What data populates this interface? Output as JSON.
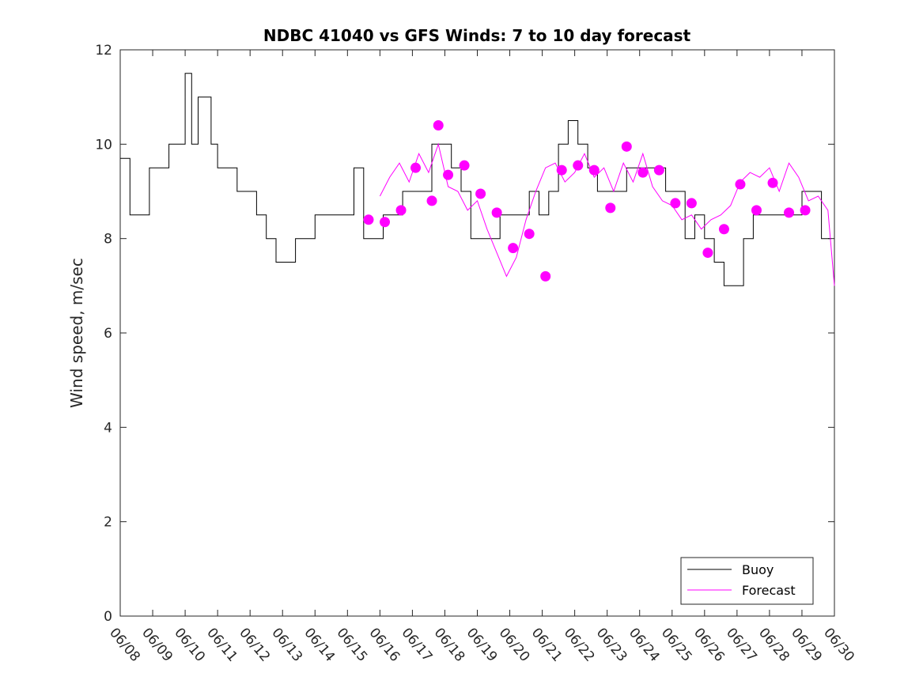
{
  "chart_data": {
    "type": "line",
    "title": "NDBC 41040 vs GFS Winds: 7 to 10 day forecast",
    "xlabel": "",
    "ylabel": "Wind speed, m/sec",
    "ylim": [
      0,
      12
    ],
    "yticks": [
      0,
      2,
      4,
      6,
      8,
      10,
      12
    ],
    "xlim": [
      "06/08",
      "06/30"
    ],
    "xticks": [
      "06/08",
      "06/09",
      "06/10",
      "06/11",
      "06/12",
      "06/13",
      "06/14",
      "06/15",
      "06/16",
      "06/17",
      "06/18",
      "06/19",
      "06/20",
      "06/21",
      "06/22",
      "06/23",
      "06/24",
      "06/25",
      "06/26",
      "06/27",
      "06/28",
      "06/29",
      "06/30"
    ],
    "grid": false,
    "legend": {
      "position": "bottom-right",
      "entries": [
        "Buoy",
        "Forecast"
      ]
    },
    "colors": {
      "buoy": "#000000",
      "forecast": "#ff00ff"
    },
    "series": [
      {
        "name": "Buoy",
        "kind": "line",
        "x_unit": "days after 06/08",
        "x": [
          0,
          0.3,
          0.6,
          0.9,
          1.2,
          1.5,
          1.8,
          2.0,
          2.2,
          2.4,
          2.6,
          2.8,
          3.0,
          3.3,
          3.6,
          3.9,
          4.2,
          4.5,
          4.8,
          5.1,
          5.4,
          5.7,
          6.0,
          6.3,
          6.6,
          6.9,
          7.2,
          7.5,
          7.8,
          8.1,
          8.4,
          8.7,
          9.0,
          9.3,
          9.6,
          9.9,
          10.2,
          10.5,
          10.8,
          11.1,
          11.4,
          11.7,
          12.0,
          12.3,
          12.6,
          12.9,
          13.2,
          13.5,
          13.8,
          14.1,
          14.4,
          14.7,
          15.0,
          15.3,
          15.6,
          15.9,
          16.2,
          16.5,
          16.8,
          17.1,
          17.4,
          17.7,
          18.0,
          18.3,
          18.6,
          18.9,
          19.2,
          19.5,
          19.8,
          20.1,
          20.4,
          20.7,
          21.0,
          21.3,
          21.6,
          21.9
        ],
        "y": [
          9.7,
          8.5,
          8.5,
          9.5,
          9.5,
          10,
          10,
          11.5,
          10,
          11,
          11,
          10,
          9.5,
          9.5,
          9,
          9,
          8.5,
          8,
          7.5,
          7.5,
          8,
          8,
          8.5,
          8.5,
          8.5,
          8.5,
          9.5,
          8,
          8,
          8.5,
          8.5,
          9,
          9,
          9,
          10,
          10,
          9.5,
          9,
          8,
          8,
          8,
          8.5,
          8.5,
          8.5,
          9,
          8.5,
          9,
          10,
          10.5,
          10,
          9.5,
          9,
          9,
          9,
          9.5,
          9.5,
          9.5,
          9.5,
          9,
          9,
          8,
          8.5,
          8,
          7.5,
          7,
          7,
          8,
          8.5,
          8.5,
          8.5,
          8.5,
          8.5,
          9,
          9,
          8,
          8
        ]
      },
      {
        "name": "Forecast",
        "kind": "line",
        "x_unit": "days after 06/08",
        "x": [
          8,
          8.3,
          8.6,
          8.9,
          9.2,
          9.5,
          9.8,
          10.1,
          10.4,
          10.7,
          11.0,
          11.3,
          11.6,
          11.9,
          12.2,
          12.5,
          12.8,
          13.1,
          13.4,
          13.7,
          14.0,
          14.3,
          14.6,
          14.9,
          15.2,
          15.5,
          15.8,
          16.1,
          16.4,
          16.7,
          17.0,
          17.3,
          17.6,
          17.9,
          18.2,
          18.5,
          18.8,
          19.1,
          19.4,
          19.7,
          20.0,
          20.3,
          20.6,
          20.9,
          21.2,
          21.5,
          21.8,
          22.0
        ],
        "y": [
          8.9,
          9.3,
          9.6,
          9.2,
          9.8,
          9.4,
          10.0,
          9.1,
          9.0,
          8.6,
          8.8,
          8.2,
          7.7,
          7.2,
          7.6,
          8.4,
          9.0,
          9.5,
          9.6,
          9.2,
          9.4,
          9.8,
          9.3,
          9.5,
          9.0,
          9.6,
          9.2,
          9.8,
          9.1,
          8.8,
          8.7,
          8.4,
          8.5,
          8.2,
          8.4,
          8.5,
          8.7,
          9.2,
          9.4,
          9.3,
          9.5,
          9.0,
          9.6,
          9.3,
          8.8,
          8.9,
          8.6,
          7.0
        ]
      },
      {
        "name": "",
        "kind": "markers",
        "x_unit": "days after 06/08",
        "x": [
          7.65,
          8.15,
          8.65,
          9.1,
          9.6,
          9.8,
          10.1,
          10.6,
          11.1,
          11.6,
          12.1,
          12.6,
          13.1,
          13.6,
          14.1,
          14.6,
          15.1,
          15.6,
          16.1,
          16.6,
          17.1,
          17.6,
          18.1,
          18.6,
          19.1,
          19.6,
          20.1,
          20.6,
          21.1
        ],
        "y": [
          8.4,
          8.35,
          8.6,
          9.5,
          8.8,
          10.4,
          9.35,
          9.55,
          8.95,
          8.55,
          7.8,
          8.1,
          7.2,
          9.45,
          9.55,
          9.45,
          8.65,
          9.95,
          9.4,
          9.45,
          8.75,
          8.75,
          7.7,
          8.2,
          9.15,
          8.6,
          9.18,
          8.55,
          8.6
        ]
      }
    ]
  }
}
